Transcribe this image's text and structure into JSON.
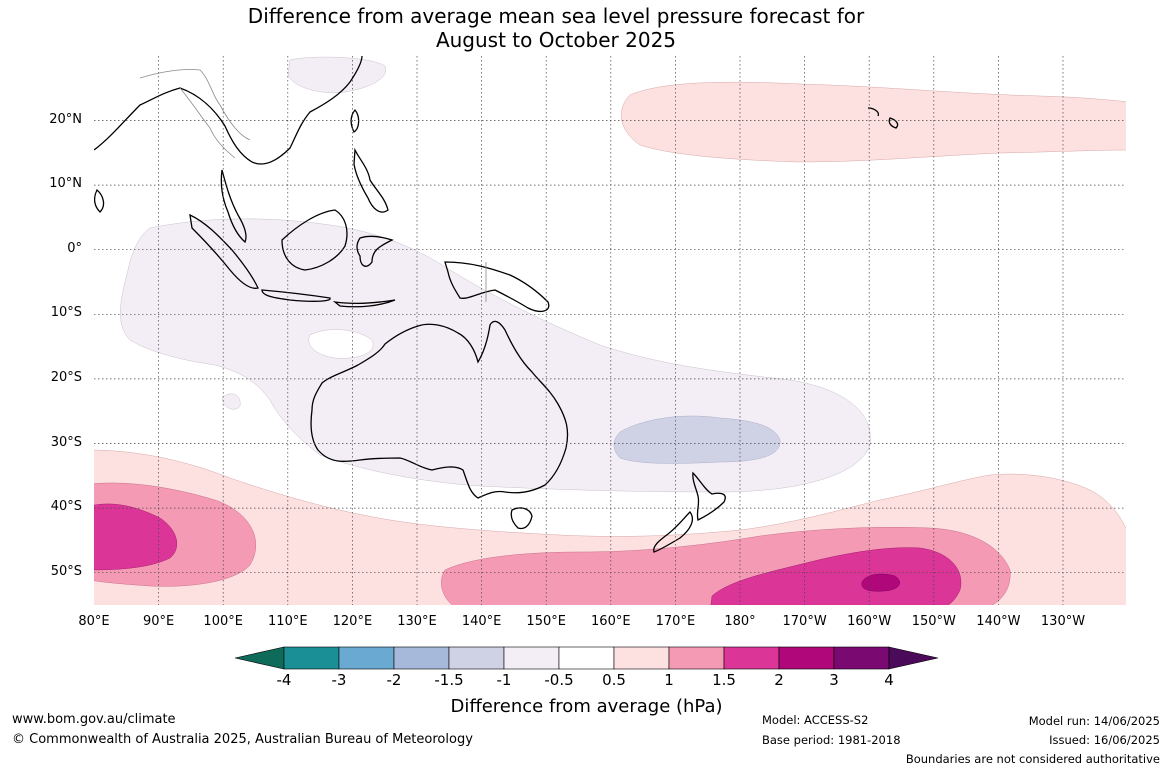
{
  "title": {
    "line1": "Difference from average mean sea level pressure forecast for",
    "line2": "August to October 2025"
  },
  "map": {
    "region": "Australia, Indian Ocean and West Pacific",
    "lat_labels": [
      "20°N",
      "10°N",
      "0°",
      "10°S",
      "20°S",
      "30°S",
      "40°S",
      "50°S"
    ],
    "lon_labels": [
      "80°E",
      "90°E",
      "100°E",
      "110°E",
      "120°E",
      "130°E",
      "140°E",
      "150°E",
      "160°E",
      "170°E",
      "180°",
      "170°W",
      "160°W",
      "150°W",
      "140°W",
      "130°W"
    ],
    "grid": true
  },
  "legend": {
    "title": "Difference from average (hPa)",
    "tick_labels": [
      "-4",
      "-3",
      "-2",
      "-1.5",
      "-1",
      "-0.5",
      "0.5",
      "1",
      "1.5",
      "2",
      "3",
      "4"
    ],
    "colors": [
      "#0e6b5a",
      "#1a8f96",
      "#6aaad2",
      "#a6b9da",
      "#cfd1e5",
      "#f3edf5",
      "#ffffff",
      "#fde0e0",
      "#f59ab4",
      "#dc3598",
      "#b0087a",
      "#7a0a72",
      "#4b0a5a"
    ]
  },
  "footer": {
    "website": "www.bom.gov.au/climate",
    "copyright": "© Commonwealth of Australia 2025, Australian Bureau of Meteorology",
    "model": "Model: ACCESS-S2",
    "base_period": "Base period: 1981-2018",
    "model_run": "Model run: 14/06/2025",
    "issued": "Issued: 16/06/2025",
    "disclaimer": "Boundaries are not considered authoritative"
  }
}
